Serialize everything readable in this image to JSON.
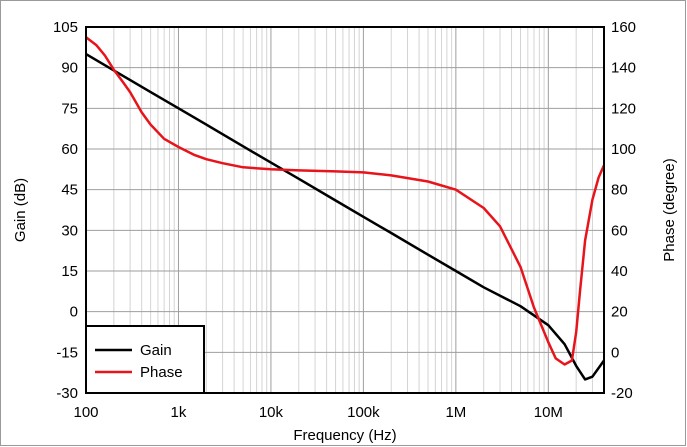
{
  "chart_data": {
    "type": "line",
    "title": "",
    "xlabel": "Frequency (Hz)",
    "ylabel_left": "Gain (dB)",
    "ylabel_right": "Phase (degree)",
    "x_scale": "log",
    "xlim": [
      100,
      40000000
    ],
    "ylim_left": [
      -30,
      105
    ],
    "ylim_right": [
      -20,
      160
    ],
    "x_ticks": [
      100,
      1000,
      10000,
      100000,
      1000000,
      10000000
    ],
    "x_tick_labels": [
      "100",
      "1k",
      "10k",
      "100k",
      "1M",
      "10M"
    ],
    "y_ticks_left": [
      -30,
      -15,
      0,
      15,
      30,
      45,
      60,
      75,
      90,
      105
    ],
    "y_ticks_right": [
      -20,
      0,
      20,
      40,
      60,
      80,
      100,
      120,
      140,
      160
    ],
    "grid": true,
    "legend_position": "bottom-left",
    "series": [
      {
        "name": "Gain",
        "axis": "left",
        "color": "#000000",
        "x": [
          100,
          200,
          500,
          1000,
          2000,
          5000,
          10000,
          20000,
          50000,
          100000,
          200000,
          500000,
          1000000,
          2000000,
          5000000,
          10000000,
          15000000,
          20000000,
          25000000,
          30000000,
          40000000
        ],
        "y": [
          95,
          89,
          81,
          75,
          69,
          61,
          55,
          49,
          41,
          35,
          29,
          21,
          15,
          9,
          2,
          -5,
          -12,
          -20,
          -25,
          -24,
          -18
        ]
      },
      {
        "name": "Phase",
        "axis": "right",
        "color": "#e8141b",
        "x": [
          100,
          130,
          160,
          200,
          250,
          300,
          400,
          500,
          700,
          1000,
          1500,
          2000,
          3000,
          5000,
          10000,
          20000,
          50000,
          100000,
          200000,
          500000,
          1000000,
          2000000,
          3000000,
          5000000,
          7000000,
          10000000,
          12000000,
          15000000,
          18000000,
          20000000,
          22000000,
          25000000,
          30000000,
          35000000,
          40000000
        ],
        "y": [
          155,
          151,
          146,
          139,
          133,
          128,
          118,
          112,
          105,
          101,
          97,
          95,
          93,
          91,
          90,
          89.5,
          89,
          88.5,
          87,
          84,
          80,
          71,
          62,
          42,
          22,
          5,
          -3,
          -6,
          -4,
          10,
          30,
          55,
          75,
          86,
          92
        ]
      }
    ]
  }
}
